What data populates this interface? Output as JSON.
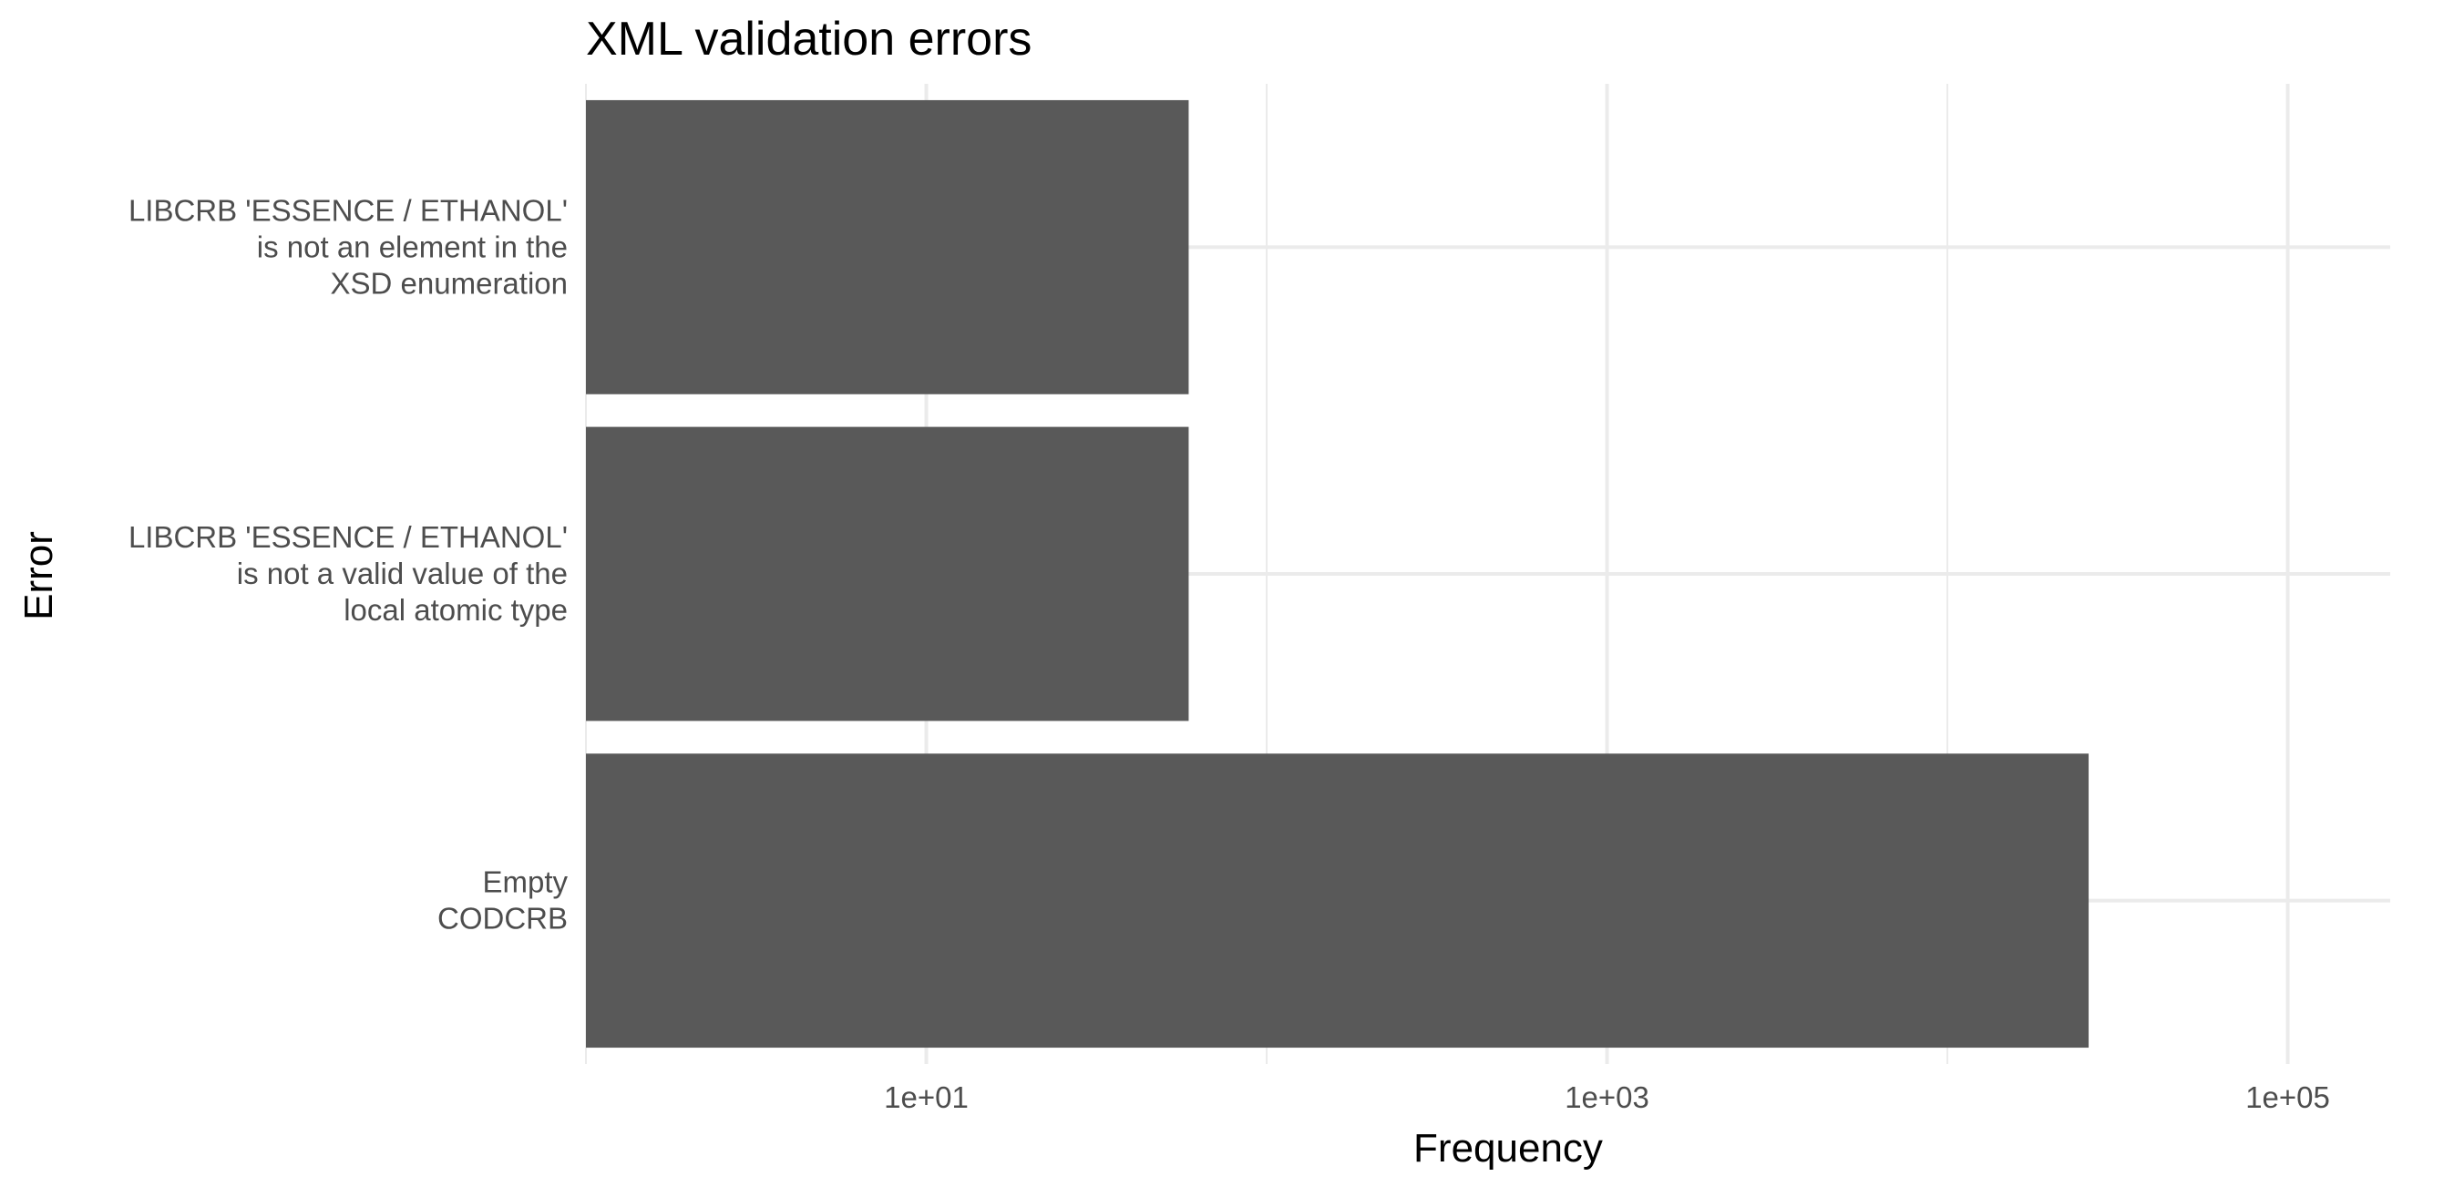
{
  "chart_data": {
    "type": "bar",
    "orientation": "horizontal",
    "title": "XML validation errors",
    "xlabel": "Frequency",
    "ylabel": "Error",
    "x_scale": "log10",
    "xlim": [
      1,
      200000
    ],
    "x_ticks": [
      {
        "value": 10,
        "label": "1e+01"
      },
      {
        "value": 1000,
        "label": "1e+03"
      },
      {
        "value": 100000,
        "label": "1e+05"
      }
    ],
    "grid": true,
    "legend": "none",
    "bar_color": "#595959",
    "grid_color": "#ebebeb",
    "categories": [
      {
        "lines": [
          "LIBCRB 'ESSENCE / ETHANOL'",
          "is not an element in the",
          "XSD enumeration"
        ]
      },
      {
        "lines": [
          "LIBCRB 'ESSENCE / ETHANOL'",
          "is not a valid value of the",
          "local atomic type"
        ]
      },
      {
        "lines": [
          "Empty",
          "CODCRB"
        ]
      }
    ],
    "values": [
      59,
      59,
      26000
    ]
  }
}
